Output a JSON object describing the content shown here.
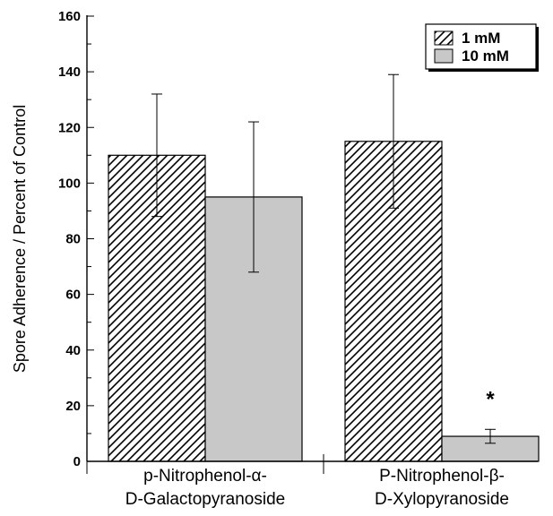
{
  "chart_data": {
    "type": "bar",
    "categories": [
      [
        "p-Nitrophenol-α-",
        "D-Galactopyranoside"
      ],
      [
        "P-Nitrophenol-β-",
        "D-Xylopyranoside"
      ]
    ],
    "series": [
      {
        "name": "1 mM",
        "values": [
          110,
          115
        ],
        "errors": [
          22,
          24
        ],
        "pattern": "hatched",
        "color": "#ffffff"
      },
      {
        "name": "10 mM",
        "values": [
          95,
          9
        ],
        "errors": [
          27,
          2.5
        ],
        "pattern": "solid",
        "color": "#c8c8c8"
      }
    ],
    "title": "",
    "xlabel": "",
    "ylabel": "Spore Adherence / Percent of Control",
    "ylim": [
      0,
      160
    ],
    "yticks": [
      0,
      20,
      40,
      60,
      80,
      100,
      120,
      140,
      160
    ],
    "grid": false,
    "legend": "top-right",
    "annotations": [
      {
        "category": 1,
        "series": 1,
        "text": "*"
      }
    ]
  }
}
